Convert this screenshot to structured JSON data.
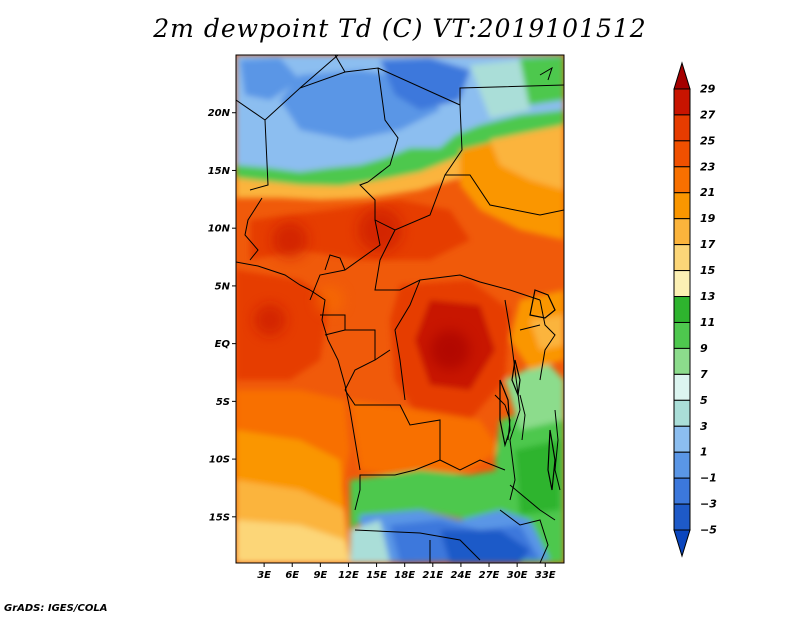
{
  "title": "2m dewpoint Td (C) VT:2019101512",
  "credit": "GrADS: IGES/COLA",
  "map": {
    "lat_labels": [
      "20N",
      "15N",
      "10N",
      "5N",
      "EQ",
      "5S",
      "10S",
      "15S"
    ],
    "lon_labels": [
      "3E",
      "6E",
      "9E",
      "12E",
      "15E",
      "18E",
      "21E",
      "24E",
      "27E",
      "30E",
      "33E"
    ],
    "extent": {
      "lon_min": 0,
      "lon_max": 35,
      "lat_min": -19,
      "lat_max": 25
    }
  },
  "colorbar": {
    "levels": [
      "29",
      "27",
      "25",
      "23",
      "21",
      "19",
      "17",
      "15",
      "13",
      "11",
      "9",
      "7",
      "5",
      "3",
      "1",
      "−1",
      "−3",
      "−5"
    ],
    "colors": [
      "#a50000",
      "#c81400",
      "#e63c00",
      "#f05000",
      "#f87000",
      "#fa9600",
      "#fbb43c",
      "#fcd678",
      "#fcf0b4",
      "#2eb42e",
      "#4ec84e",
      "#8cdc8c",
      "#dcf5f0",
      "#aaded8",
      "#8cbef0",
      "#5a96e6",
      "#3c78dc",
      "#1e5ac8",
      "#0a46be"
    ]
  },
  "chart_data": {
    "type": "heatmap",
    "title": "2m dewpoint Td (C) VT:2019101512",
    "variable": "2m dewpoint Td",
    "units": "C",
    "valid_time": "2019101512",
    "levels": [
      -5,
      -3,
      -1,
      1,
      3,
      5,
      7,
      9,
      11,
      13,
      15,
      17,
      19,
      21,
      23,
      25,
      27,
      29
    ],
    "lon_range": [
      0,
      35
    ],
    "lat_range": [
      -19,
      25
    ]
  }
}
